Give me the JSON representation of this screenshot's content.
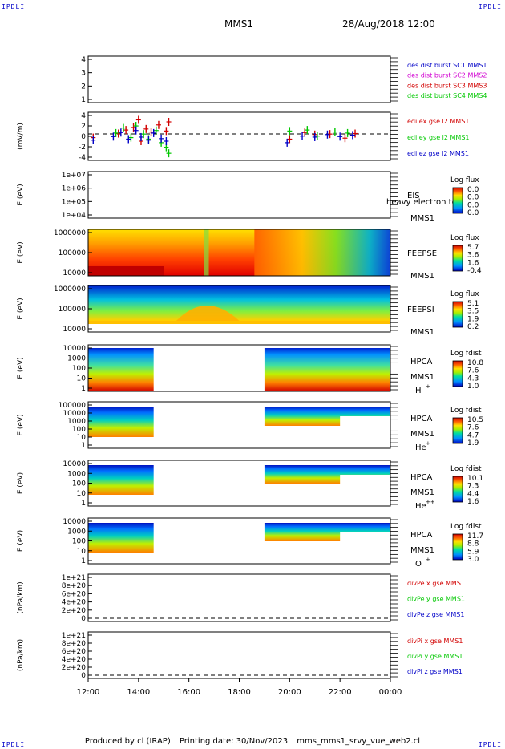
{
  "corners": [
    "IPDLI",
    "IPDLI",
    "IPDLI",
    "IPDLI"
  ],
  "header": {
    "spacecraft": "MMS1",
    "datetime": "28/Aug/2018 12:00"
  },
  "x_ticks": [
    "12:00",
    "14:00",
    "16:00",
    "18:00",
    "20:00",
    "22:00",
    "00:00"
  ],
  "colors": {
    "blue": "#0000c8",
    "magenta": "#d200d2",
    "red": "#d20000",
    "green": "#00c800"
  },
  "chart_data": [
    {
      "id": "des-dist",
      "type": "line",
      "ylabel": "",
      "yticks": [
        "4",
        "3",
        "2",
        "1"
      ],
      "ylim": [
        0.7,
        4.3
      ],
      "legend": [
        {
          "label": "des dist burst SC1 MMS1",
          "color": "#0000c8"
        },
        {
          "label": "des dist burst SC2 MMS2",
          "color": "#d200d2"
        },
        {
          "label": "des dist burst SC3 MMS3",
          "color": "#d20000"
        },
        {
          "label": "des dist burst SC4 MMS4",
          "color": "#00c800"
        }
      ]
    },
    {
      "id": "edi-e",
      "type": "scatter",
      "ylabel": "(mV/m)",
      "yticks": [
        "4",
        "2",
        "0",
        "-2",
        "-4"
      ],
      "ylim": [
        -5,
        4.5
      ],
      "zero_line": true,
      "legend": [
        {
          "label": "edi ex gse l2 MMS1",
          "color": "#d20000"
        },
        {
          "label": "edi ey gse l2 MMS1",
          "color": "#00c800"
        },
        {
          "label": "edi ez gse l2 MMS1",
          "color": "#0000c8"
        }
      ],
      "series": [
        {
          "name": "edi ex gse l2 MMS1",
          "color": "#d20000",
          "x": [
            12.2,
            13.2,
            13.5,
            13.8,
            14.0,
            14.1,
            14.3,
            14.5,
            14.8,
            15.1,
            15.2,
            20.0,
            20.6,
            21.0,
            21.6,
            22.2,
            22.6
          ],
          "y": [
            -0.5,
            0.3,
            1.0,
            1.5,
            3.0,
            -1.2,
            1.2,
            0.6,
            2.0,
            0.8,
            2.6,
            -0.8,
            0.5,
            0.1,
            0.2,
            -0.6,
            0.3
          ]
        },
        {
          "name": "edi ey gse l2 MMS1",
          "color": "#00c800",
          "x": [
            13.1,
            13.4,
            13.7,
            13.9,
            14.2,
            14.4,
            14.7,
            14.9,
            15.1,
            15.2,
            20.0,
            20.7,
            21.1,
            21.8,
            22.3
          ],
          "y": [
            0.4,
            1.4,
            -0.5,
            1.8,
            0.2,
            -0.8,
            0.9,
            -1.5,
            -2.4,
            -3.6,
            0.8,
            1.0,
            -0.2,
            0.6,
            0.4
          ]
        },
        {
          "name": "edi ez gse l2 MMS1",
          "color": "#0000c8",
          "x": [
            12.2,
            13.0,
            13.3,
            13.6,
            13.9,
            14.1,
            14.4,
            14.6,
            14.9,
            15.1,
            19.9,
            20.5,
            21.0,
            21.5,
            22.0,
            22.5
          ],
          "y": [
            -1.0,
            -0.3,
            0.5,
            -0.8,
            0.9,
            -0.4,
            -1.0,
            0.4,
            -0.7,
            -1.2,
            -1.5,
            -0.2,
            -0.4,
            0.1,
            -0.3,
            0.0
          ]
        }
      ]
    },
    {
      "id": "eis",
      "type": "heatmap",
      "ylabel": "E (eV)",
      "yticks": [
        "1e+07",
        "1e+06",
        "1e+05",
        "1e+04"
      ],
      "ylim": [
        10000,
        10000000
      ],
      "yscale": "log",
      "labels": [
        "EIS",
        "MMS1"
      ],
      "overlay_text": "heavy electron to",
      "colorbar": {
        "title": "Log flux",
        "ticks": [
          "0.0",
          "0.0",
          "0.0",
          "0.0"
        ]
      },
      "empty": true
    },
    {
      "id": "feepse",
      "type": "heatmap",
      "ylabel": "E (eV)",
      "yticks": [
        "1000000",
        "100000",
        "10000"
      ],
      "ylim": [
        10000,
        1000000
      ],
      "yscale": "log",
      "labels": [
        "FEEPSE",
        "MMS1"
      ],
      "colorbar": {
        "title": "Log flux",
        "ticks": [
          "5.7",
          "3.6",
          "1.6",
          "-0.4"
        ]
      }
    },
    {
      "id": "feepsi",
      "type": "heatmap",
      "ylabel": "E (eV)",
      "yticks": [
        "1000000",
        "100000",
        "10000"
      ],
      "ylim": [
        10000,
        1000000
      ],
      "yscale": "log",
      "labels": [
        "FEEPSI",
        "MMS1"
      ],
      "colorbar": {
        "title": "Log flux",
        "ticks": [
          "5.1",
          "3.5",
          "1.9",
          "0.2"
        ]
      }
    },
    {
      "id": "hpca-h",
      "type": "heatmap",
      "ylabel": "E (eV)",
      "yticks": [
        "10000",
        "1000",
        "100",
        "10",
        "1"
      ],
      "ylim": [
        1,
        40000
      ],
      "yscale": "log",
      "labels": [
        "HPCA",
        "MMS1",
        "H",
        "+"
      ],
      "colorbar": {
        "title": "Log fdist",
        "ticks": [
          "10.8",
          "7.6",
          "4.3",
          "1.0"
        ]
      },
      "gap": [
        14.6,
        19.0
      ]
    },
    {
      "id": "hpca-he",
      "type": "heatmap",
      "ylabel": "E (eV)",
      "yticks": [
        "100000",
        "10000",
        "1000",
        "100",
        "10",
        "1"
      ],
      "ylim": [
        1,
        100000
      ],
      "yscale": "log",
      "labels": [
        "HPCA",
        "MMS1",
        "He",
        "+"
      ],
      "colorbar": {
        "title": "Log fdist",
        "ticks": [
          "10.5",
          "7.6",
          "4.7",
          "1.9"
        ]
      },
      "gap": [
        14.6,
        19.0
      ]
    },
    {
      "id": "hpca-he2",
      "type": "heatmap",
      "ylabel": "E (eV)",
      "yticks": [
        "10000",
        "1000",
        "100",
        "10",
        "1"
      ],
      "ylim": [
        1,
        40000
      ],
      "yscale": "log",
      "labels": [
        "HPCA",
        "MMS1",
        "He",
        "++"
      ],
      "colorbar": {
        "title": "Log fdist",
        "ticks": [
          "10.1",
          "7.3",
          "4.4",
          "1.6"
        ]
      },
      "gap": [
        14.6,
        19.0
      ]
    },
    {
      "id": "hpca-o",
      "type": "heatmap",
      "ylabel": "E (eV)",
      "yticks": [
        "10000",
        "1000",
        "100",
        "10",
        "1"
      ],
      "ylim": [
        1,
        40000
      ],
      "yscale": "log",
      "labels": [
        "HPCA",
        "MMS1",
        "O",
        "+"
      ],
      "colorbar": {
        "title": "Log fdist",
        "ticks": [
          "11.7",
          "8.8",
          "5.9",
          "3.0"
        ]
      },
      "gap": [
        14.6,
        19.0
      ]
    },
    {
      "id": "divpe",
      "type": "line",
      "ylabel": "(nPa/km)",
      "yticks": [
        "1e+21",
        "8e+20",
        "6e+20",
        "4e+20",
        "2e+20",
        "0"
      ],
      "ylim": [
        -1e+20,
        1.1e+21
      ],
      "zero_line": true,
      "legend": [
        {
          "label": "divPe x gse MMS1",
          "color": "#d20000"
        },
        {
          "label": "divPe y gse MMS1",
          "color": "#00c800"
        },
        {
          "label": "divPe z gse MMS1",
          "color": "#0000c8"
        }
      ]
    },
    {
      "id": "divpi",
      "type": "line",
      "ylabel": "(nPa/km)",
      "yticks": [
        "1e+21",
        "8e+20",
        "6e+20",
        "4e+20",
        "2e+20",
        "0"
      ],
      "ylim": [
        -1e+20,
        1.1e+21
      ],
      "zero_line": true,
      "legend": [
        {
          "label": "divPi x gse MMS1",
          "color": "#d20000"
        },
        {
          "label": "divPi y gse MMS1",
          "color": "#00c800"
        },
        {
          "label": "divPi z gse MMS1",
          "color": "#0000c8"
        }
      ]
    }
  ],
  "footer": {
    "produced_by": "Produced by cl (IRAP)",
    "printing_date": "Printing date: 30/Nov/2023",
    "filename": "mms_mms1_srvy_vue_web2.cl"
  }
}
